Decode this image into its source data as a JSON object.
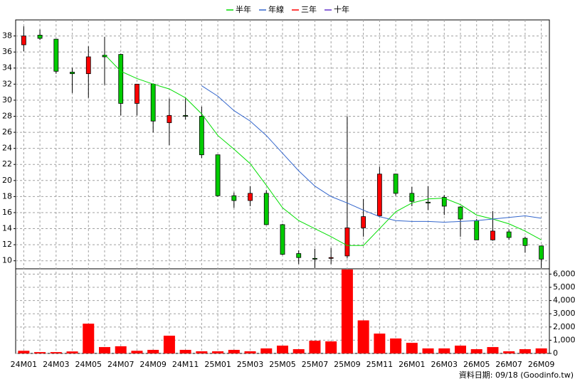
{
  "chart_data": {
    "type": "candlestick",
    "categories": [
      "24M01",
      null,
      "24M03",
      null,
      "24M05",
      null,
      "24M07",
      null,
      "24M09",
      null,
      "24M11",
      null,
      "25M01",
      null,
      "25M03",
      null,
      "25M05",
      null,
      "25M07",
      null,
      "25M09",
      null,
      "25M11",
      null,
      "26M01",
      null,
      "26M03",
      null,
      "26M05",
      null,
      "26M07",
      null,
      "26M09"
    ],
    "open": [
      36.9,
      38.1,
      37.6,
      33.5,
      33.3,
      35.6,
      35.7,
      29.6,
      32,
      27.2,
      28.1,
      28,
      23.2,
      18.1,
      17.5,
      18.4,
      14.5,
      10.9,
      10.3,
      10.3,
      10.6,
      14.1,
      15.6,
      20.8,
      18.4,
      17.3,
      17.9,
      16.7,
      15,
      12.6,
      13.6,
      12.8,
      11.85
    ],
    "high": [
      39.2,
      38.8,
      37.6,
      34,
      36.7,
      37.9,
      35.8,
      32,
      32.1,
      30.2,
      30.2,
      29.2,
      23.2,
      18.5,
      19.3,
      18.8,
      14.6,
      11.3,
      11.5,
      11.6,
      28,
      17.7,
      21.7,
      20.8,
      19.2,
      19.3,
      18.2,
      16.8,
      15.2,
      16.2,
      13.9,
      13,
      11.9
    ],
    "low": [
      36.1,
      37.5,
      33.3,
      30.9,
      30.3,
      31.9,
      28.1,
      28.1,
      26,
      24.4,
      27.6,
      22.8,
      18,
      16.6,
      16.8,
      14.5,
      10.7,
      9.6,
      9.1,
      9.6,
      10.3,
      13,
      15.6,
      18.1,
      16.8,
      16.3,
      15.7,
      13,
      12.6,
      12.5,
      12.6,
      11,
      9.1
    ],
    "close": [
      38,
      37.7,
      33.6,
      33.3,
      35.4,
      35.4,
      29.6,
      32,
      27.4,
      28.1,
      28,
      23.2,
      18.1,
      17.5,
      18.4,
      14.5,
      10.8,
      10.4,
      10.2,
      10.4,
      14.1,
      15.5,
      20.8,
      18.4,
      17.4,
      17.2,
      16.8,
      15.2,
      12.6,
      13.7,
      12.9,
      11.9,
      10.2
    ],
    "up_color": "#ff0000",
    "down_color": "#00cc00",
    "ylim": [
      9,
      40
    ],
    "yticks": [
      10,
      12,
      14,
      16,
      18,
      20,
      22,
      24,
      26,
      28,
      30,
      32,
      34,
      36,
      38
    ],
    "series": [
      {
        "name": "半年",
        "color": "#00dd00",
        "values": [
          null,
          null,
          null,
          null,
          null,
          35.7,
          33.6,
          32.7,
          32,
          31.4,
          30.3,
          28.3,
          25.6,
          23.9,
          22.1,
          19.4,
          16.6,
          15,
          14,
          13,
          11.9,
          11.9,
          14,
          16.1,
          17.2,
          17.7,
          17.8,
          17,
          15.7,
          15.2,
          14.6,
          13.7,
          12.6
        ]
      },
      {
        "name": "年線",
        "color": "#3366cc",
        "values": [
          null,
          null,
          null,
          null,
          null,
          null,
          null,
          null,
          null,
          null,
          null,
          31.8,
          30.5,
          28.7,
          27.4,
          25.6,
          23.4,
          21.2,
          19.3,
          18,
          17.2,
          16.3,
          15.5,
          15,
          14.9,
          14.9,
          14.8,
          14.9,
          15,
          15.2,
          15.4,
          15.6,
          15.3
        ]
      },
      {
        "name": "三年",
        "color": "#ff0000",
        "values": [
          null,
          null,
          null,
          null,
          null,
          null,
          null,
          null,
          null,
          null,
          null,
          null,
          null,
          null,
          null,
          null,
          null,
          null,
          null,
          null,
          null,
          null,
          null,
          null,
          null,
          null,
          null,
          null,
          null,
          null,
          null,
          null,
          null
        ]
      },
      {
        "name": "十年",
        "color": "#6633cc",
        "values": [
          null,
          null,
          null,
          null,
          null,
          null,
          null,
          null,
          null,
          null,
          null,
          null,
          null,
          null,
          null,
          null,
          null,
          null,
          null,
          null,
          null,
          null,
          null,
          null,
          null,
          null,
          null,
          null,
          null,
          null,
          null,
          null,
          null
        ]
      }
    ],
    "volume": {
      "color": "#ff0000",
      "values": [
        200,
        100,
        100,
        150,
        2250,
        480,
        540,
        200,
        270,
        1340,
        270,
        160,
        160,
        270,
        160,
        380,
        590,
        320,
        960,
        910,
        6350,
        2500,
        1500,
        1130,
        800,
        380,
        380,
        590,
        320,
        480,
        160,
        320,
        380
      ]
    },
    "y2lim": [
      0,
      6400
    ],
    "y2ticks": [
      0,
      {
        "value": 1000,
        "label": "1,000"
      },
      {
        "value": 2000,
        "label": "2,000"
      },
      {
        "value": 3000,
        "label": "3,000"
      },
      {
        "value": 4000,
        "label": "4,000"
      },
      {
        "value": 5000,
        "label": "5,000"
      },
      {
        "value": 6000,
        "label": "6,000"
      }
    ],
    "grid": true,
    "source": "資料日期: 09/18  (Goodinfo.tw)"
  }
}
